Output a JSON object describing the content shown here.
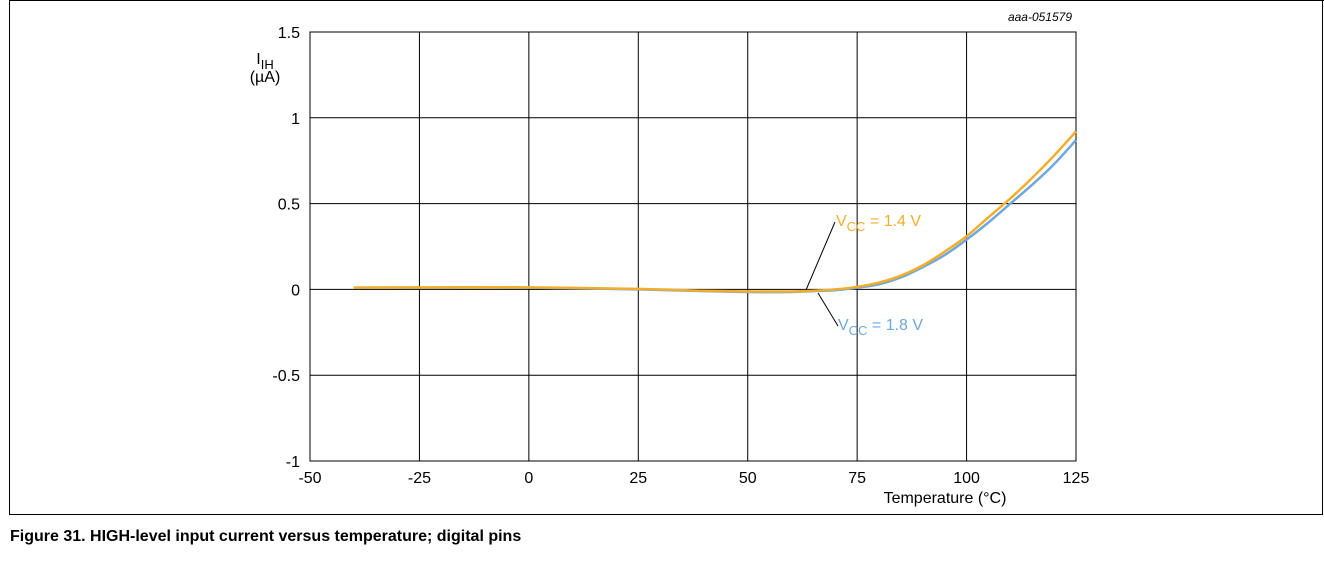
{
  "figure": {
    "caption": "Figure 31.  HIGH-level input current versus temperature; digital pins",
    "doc_id": "aaa-051579"
  },
  "chart_data": {
    "type": "line",
    "ylabel_main": "I",
    "ylabel_sub": "IH",
    "ylabel_unit": "(µA)",
    "xlabel": "Temperature (°C)",
    "xlim": [
      -50,
      125
    ],
    "ylim": [
      -1,
      1.5
    ],
    "x_ticks": [
      -50,
      -25,
      0,
      25,
      50,
      75,
      100,
      125
    ],
    "x_tick_labels": [
      "-50",
      "-25",
      "0",
      "25",
      "50",
      "75",
      "100",
      "125"
    ],
    "y_ticks": [
      -1,
      -0.5,
      0,
      0.5,
      1,
      1.5
    ],
    "y_tick_labels": [
      "-1",
      "-0.5",
      "0",
      "0.5",
      "1",
      "1.5"
    ],
    "grid": true,
    "series": [
      {
        "name": "V_CC = 1.8 V",
        "label_main": "V",
        "label_sub": "CC",
        "label_rest": " = 1.8 V",
        "color": "#6fa8dc",
        "x": [
          -40,
          -25,
          0,
          25,
          40,
          50,
          60,
          65,
          70,
          75,
          80,
          85,
          90,
          95,
          100,
          105,
          110,
          115,
          120,
          125
        ],
        "y": [
          0.01,
          0.01,
          0.01,
          0.0,
          -0.01,
          -0.015,
          -0.015,
          -0.01,
          -0.005,
          0.01,
          0.03,
          0.07,
          0.13,
          0.2,
          0.29,
          0.39,
          0.5,
          0.61,
          0.73,
          0.87
        ]
      },
      {
        "name": "V_CC = 1.4 V",
        "label_main": "V",
        "label_sub": "CC",
        "label_rest": " = 1.4 V",
        "color": "#f2ae2b",
        "x": [
          -40,
          -25,
          0,
          25,
          40,
          50,
          60,
          65,
          70,
          75,
          80,
          85,
          90,
          95,
          100,
          105,
          110,
          115,
          120,
          125
        ],
        "y": [
          0.01,
          0.012,
          0.012,
          0.003,
          -0.008,
          -0.012,
          -0.012,
          -0.008,
          0.0,
          0.015,
          0.04,
          0.08,
          0.14,
          0.22,
          0.31,
          0.42,
          0.53,
          0.65,
          0.78,
          0.92
        ]
      }
    ]
  }
}
